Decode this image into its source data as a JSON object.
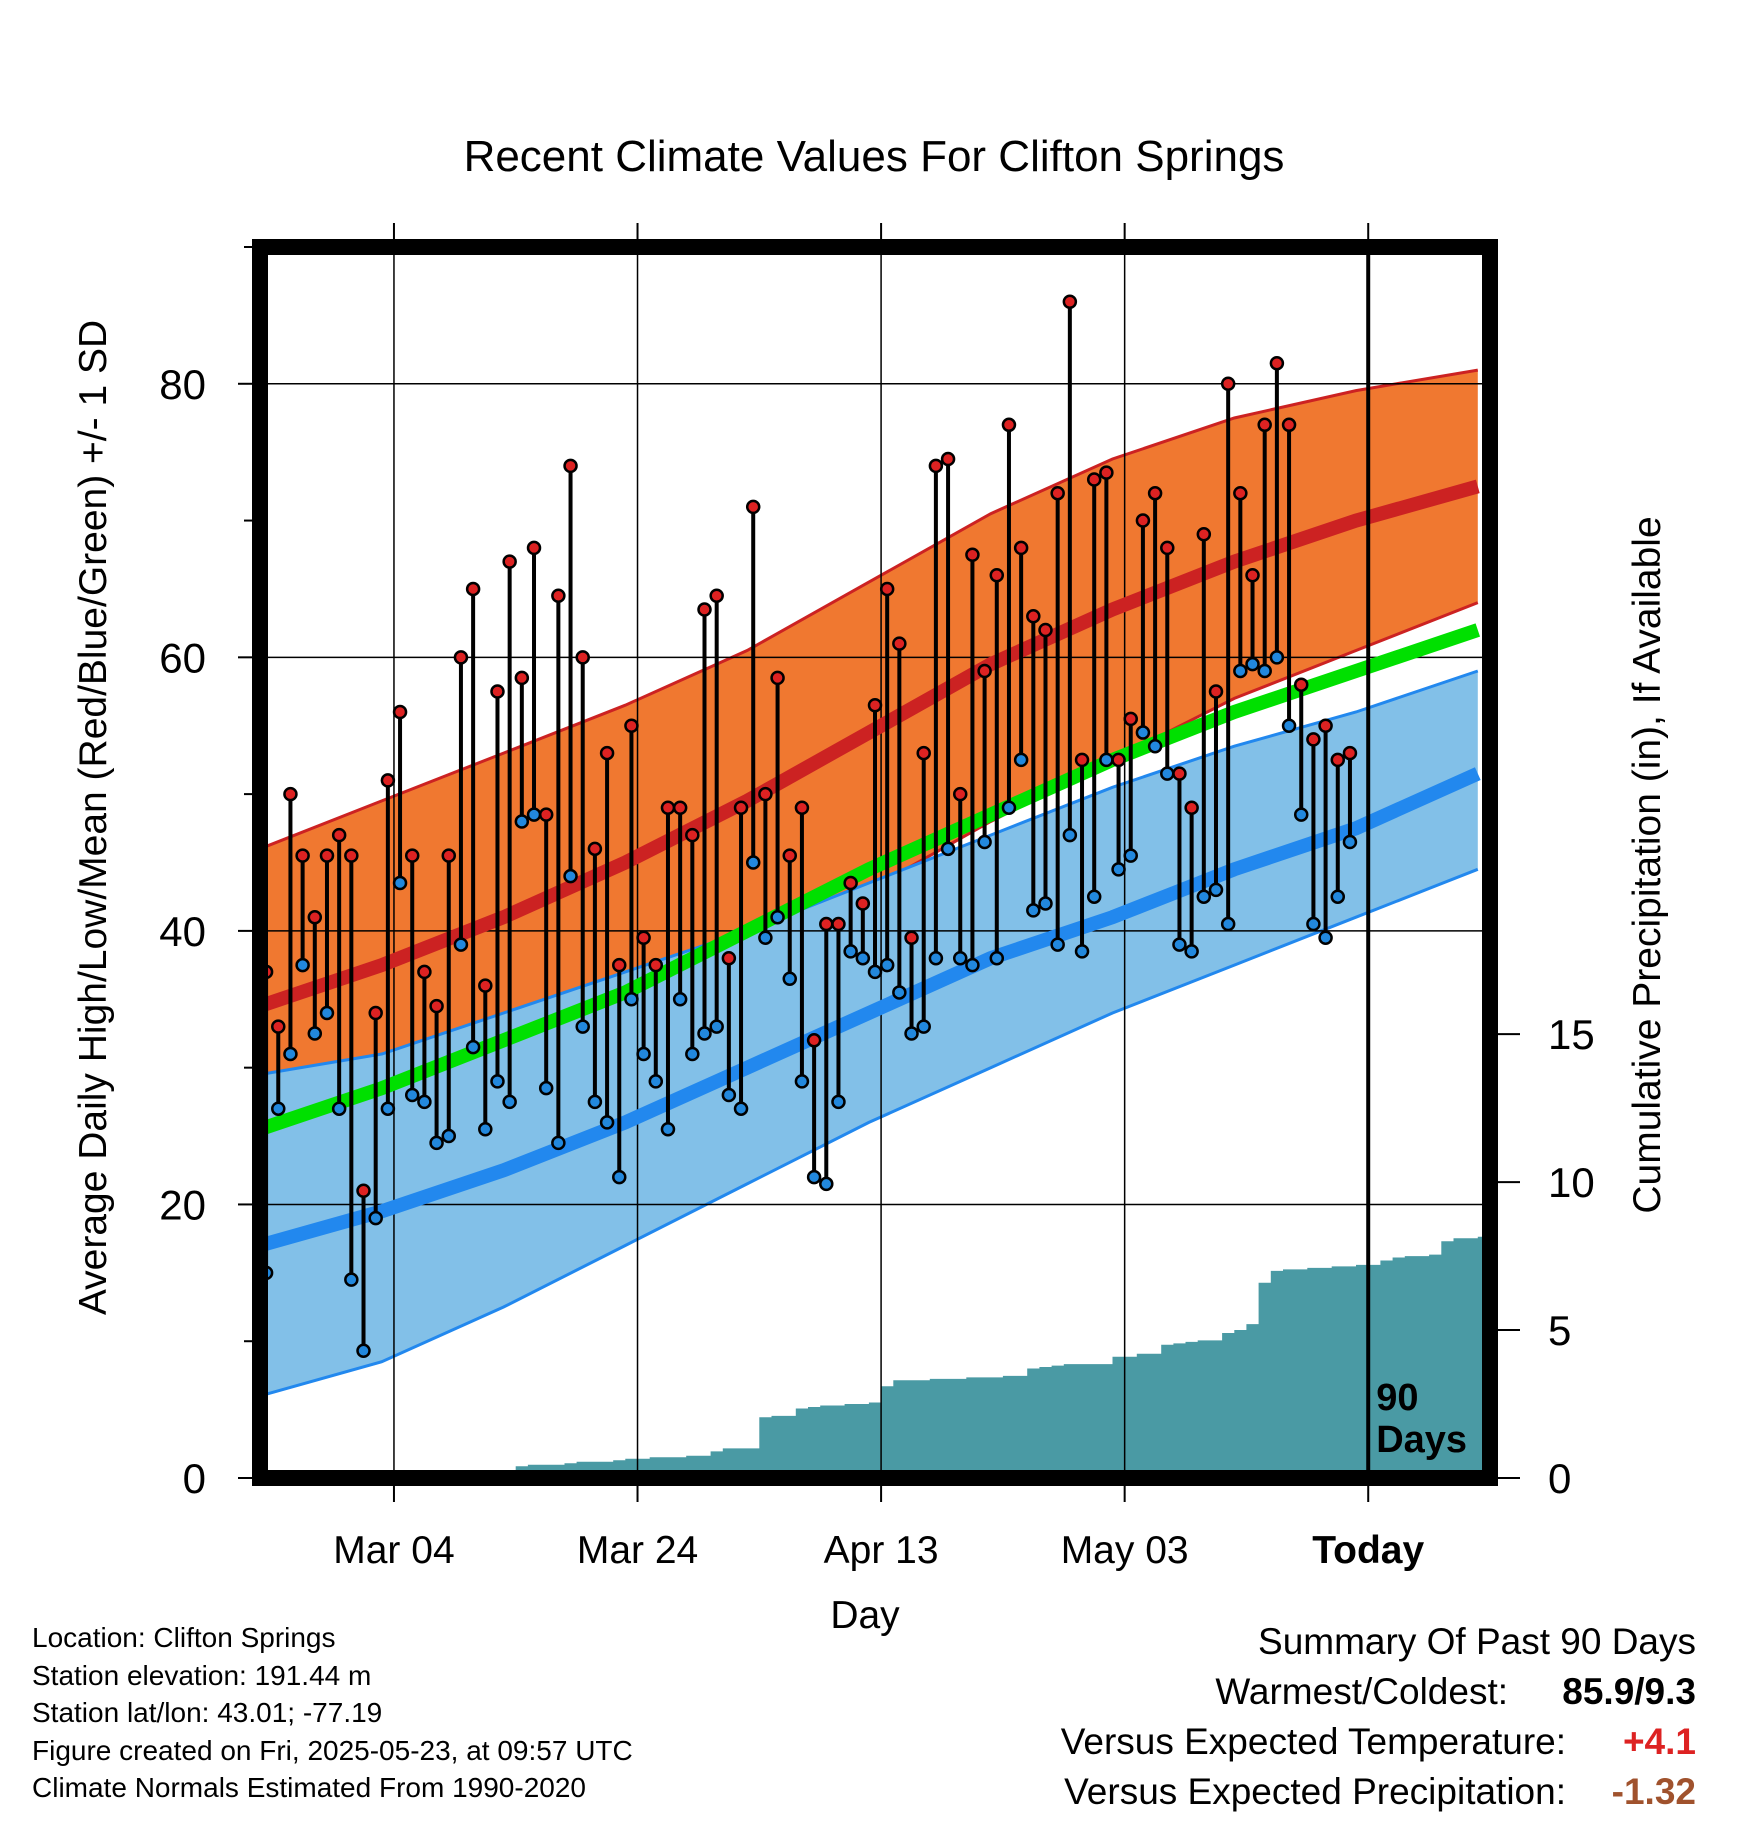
{
  "title": "Recent Climate Values For Clifton Springs",
  "footer": {
    "location": "Location: Clifton Springs",
    "elevation": "Station elevation: 191.44 m",
    "latlon": "Station lat/lon: 43.01; -77.19",
    "created": "Figure created on Fri, 2025-05-23, at 09:57 UTC",
    "normals": "Climate Normals Estimated From 1990-2020"
  },
  "summary": {
    "heading": "Summary Of Past 90 Days",
    "warmest_label": "Warmest/Coldest:",
    "warmest_value": "85.9/9.3",
    "temp_label": "Versus Expected Temperature:",
    "temp_value": "+4.1",
    "precip_label": "Versus Expected Precipitation:",
    "precip_value": "-1.32"
  },
  "colors": {
    "high": "#cc2222",
    "high_band": "#f07830",
    "low": "#2288ee",
    "low_band": "#82c0e8",
    "mean": "#00e000",
    "precip": "#4a9aa4",
    "high_marker": "#dd2222",
    "low_marker": "#2288dd",
    "temp_value": "#dd2222",
    "precip_value": "#a0522d"
  },
  "chart_data": {
    "type": "line",
    "title": "Recent Climate Values For Clifton Springs",
    "xlabel": "Day",
    "ylabel": "Average Daily High/Low/Mean (Red/Blue/Green) +/- 1 SD",
    "ylabel_right": "Cumulative Precipitation (in), If Available",
    "x_start": "Feb 22",
    "x_range_days": [
      0,
      101
    ],
    "xticks": [
      {
        "day": 11,
        "label": "Mar 04"
      },
      {
        "day": 31,
        "label": "Mar 24"
      },
      {
        "day": 51,
        "label": "Apr 13"
      },
      {
        "day": 71,
        "label": "May 03"
      },
      {
        "day": 91,
        "label": "Today"
      }
    ],
    "ylim": [
      0,
      90
    ],
    "yticks": [
      0,
      20,
      40,
      60,
      80
    ],
    "y_minor_ticks": [
      10,
      30,
      50,
      70,
      90
    ],
    "precip_ylim": [
      0,
      41.6
    ],
    "precip_ticks": [
      0,
      5,
      10,
      15
    ],
    "today_day": 91,
    "today_label": "90 Days",
    "grid": true,
    "normals": {
      "days": [
        0,
        10,
        20,
        30,
        40,
        50,
        60,
        70,
        80,
        90,
        100
      ],
      "high_mean": [
        34.5,
        37.5,
        41,
        45,
        49.5,
        54.5,
        59.5,
        63.5,
        67,
        70,
        72.5
      ],
      "high_upper": [
        46,
        49.5,
        53,
        56.5,
        60.5,
        65.5,
        70.5,
        74.5,
        77.5,
        79.5,
        81
      ],
      "high_lower": [
        24,
        25.5,
        29,
        33.5,
        38,
        43,
        48,
        52.5,
        57,
        60.5,
        64
      ],
      "low_mean": [
        17,
        19.5,
        22.5,
        26,
        30,
        34,
        38,
        41,
        44.5,
        47.5,
        51.5
      ],
      "low_upper": [
        29.5,
        31,
        34,
        37,
        40,
        43.5,
        47,
        50.5,
        53.5,
        56,
        59
      ],
      "low_lower": [
        6,
        8.5,
        12.5,
        17,
        21.5,
        26,
        30,
        34,
        37.5,
        41,
        44.5
      ],
      "mean": [
        25.5,
        28.5,
        32,
        35.5,
        40,
        44.5,
        48.5,
        52.5,
        56,
        59,
        62
      ]
    },
    "series": [
      {
        "name": "High",
        "values": [
          37,
          33,
          50,
          45.5,
          41,
          45.5,
          47,
          45.5,
          21,
          34,
          51,
          56,
          45.5,
          37,
          34.5,
          45.5,
          60,
          65,
          36,
          57.5,
          67,
          58.5,
          68,
          48.5,
          64.5,
          74,
          60,
          46,
          53,
          37.5,
          55,
          39.5,
          37.5,
          49,
          49,
          47,
          63.5,
          64.5,
          38,
          49,
          71,
          50,
          58.5,
          45.5,
          49,
          32,
          40.5,
          40.5,
          43.5,
          42,
          56.5,
          65,
          61,
          39.5,
          53,
          74,
          74.5,
          50,
          67.5,
          59,
          66,
          77,
          68,
          63,
          62,
          72,
          86,
          52.5,
          73,
          73.5,
          52.5,
          55.5,
          70,
          72,
          68,
          51.5,
          49,
          69,
          57.5,
          80,
          72,
          66,
          77,
          81.5,
          77,
          58,
          54,
          55,
          52.5,
          53
        ]
      },
      {
        "name": "Low",
        "values": [
          15,
          27,
          31,
          37.5,
          32.5,
          34,
          27,
          14.5,
          9.3,
          19,
          27,
          43.5,
          28,
          27.5,
          24.5,
          25,
          39,
          31.5,
          25.5,
          29,
          27.5,
          48,
          48.5,
          28.5,
          24.5,
          44,
          33,
          27.5,
          26,
          22,
          35,
          31,
          29,
          25.5,
          35,
          31,
          32.5,
          33,
          28,
          27,
          45,
          39.5,
          41,
          36.5,
          29,
          22,
          21.5,
          27.5,
          38.5,
          38,
          37,
          37.5,
          35.5,
          32.5,
          33,
          38,
          46,
          38,
          37.5,
          46.5,
          38,
          49,
          52.5,
          41.5,
          42,
          39,
          47,
          38.5,
          42.5,
          52.5,
          44.5,
          45.5,
          54.5,
          53.5,
          51.5,
          39,
          38.5,
          42.5,
          43,
          40.5,
          59,
          59.5,
          59,
          60,
          55,
          48.5,
          40.5,
          39.5,
          42.5,
          46.5
        ]
      }
    ],
    "precip_cumulative": {
      "days": [
        0,
        10,
        11,
        12,
        13,
        14,
        15,
        16,
        17,
        18,
        19,
        20,
        21,
        22,
        23,
        24,
        25,
        26,
        27,
        28,
        29,
        30,
        31,
        32,
        33,
        34,
        35,
        36,
        37,
        38,
        39,
        40,
        41,
        42,
        43,
        44,
        45,
        46,
        47,
        48,
        49,
        50,
        51,
        52,
        53,
        54,
        55,
        56,
        57,
        58,
        59,
        60,
        61,
        62,
        63,
        64,
        65,
        66,
        67,
        68,
        69,
        70,
        71,
        72,
        73,
        74,
        75,
        76,
        77,
        78,
        79,
        80,
        81,
        82,
        83,
        84,
        85,
        86,
        87,
        88,
        89,
        90,
        91,
        92,
        93,
        94,
        95,
        96,
        97,
        98,
        99,
        100
      ],
      "values": [
        0,
        0,
        0.15,
        0.2,
        0.2,
        0.2,
        0.2,
        0.2,
        0.2,
        0.2,
        0.2,
        0.2,
        0.4,
        0.45,
        0.45,
        0.45,
        0.5,
        0.55,
        0.55,
        0.55,
        0.6,
        0.65,
        0.65,
        0.7,
        0.7,
        0.7,
        0.75,
        0.75,
        0.9,
        1.0,
        1.0,
        1.0,
        2.05,
        2.1,
        2.1,
        2.35,
        2.4,
        2.45,
        2.45,
        2.5,
        2.5,
        2.55,
        3.1,
        3.3,
        3.3,
        3.3,
        3.35,
        3.35,
        3.35,
        3.4,
        3.4,
        3.4,
        3.45,
        3.45,
        3.7,
        3.75,
        3.8,
        3.85,
        3.85,
        3.85,
        3.85,
        4.1,
        4.1,
        4.2,
        4.2,
        4.5,
        4.55,
        4.6,
        4.65,
        4.65,
        4.9,
        5.0,
        5.2,
        6.6,
        7.0,
        7.05,
        7.05,
        7.1,
        7.1,
        7.15,
        7.15,
        7.2,
        7.2,
        7.35,
        7.45,
        7.5,
        7.5,
        7.55,
        8.0,
        8.1,
        8.1,
        8.15
      ]
    }
  }
}
